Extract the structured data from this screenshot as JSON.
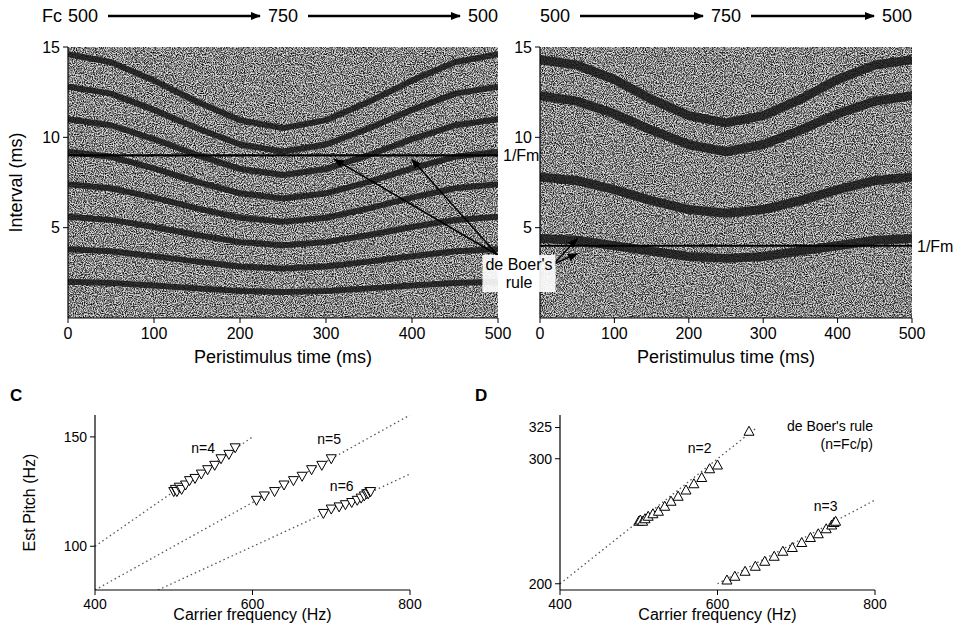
{
  "chart_data": [
    {
      "type": "raster",
      "header": [
        "Fc",
        "500",
        "750",
        "500"
      ],
      "xlabel": "Peristimulus time (ms)",
      "ylabel": "Interval (ms)",
      "xlim": [
        0,
        500
      ],
      "xticks": [
        0,
        100,
        200,
        300,
        400,
        500
      ],
      "ylim": [
        0,
        15
      ],
      "yticks": [
        5,
        10,
        15
      ],
      "x": [
        0,
        50,
        100,
        150,
        200,
        250,
        300,
        350,
        400,
        450,
        500
      ],
      "series": [
        {
          "color": "#1e1e1e",
          "values": [
            2,
            1.94,
            1.8,
            1.64,
            1.5,
            1.44,
            1.5,
            1.64,
            1.8,
            1.94,
            2
          ]
        },
        {
          "color": "#1e1e1e",
          "values": [
            3.8,
            3.69,
            3.42,
            3.12,
            2.85,
            2.74,
            2.85,
            3.12,
            3.42,
            3.69,
            3.8
          ]
        },
        {
          "color": "#1e1e1e",
          "values": [
            5.6,
            5.43,
            5.04,
            4.59,
            4.2,
            4.03,
            4.2,
            4.59,
            5.04,
            5.43,
            5.6
          ]
        },
        {
          "color": "#1e1e1e",
          "values": [
            7.4,
            7.18,
            6.66,
            6.07,
            5.55,
            5.33,
            5.55,
            6.07,
            6.66,
            7.18,
            7.4
          ]
        },
        {
          "color": "#1e1e1e",
          "values": [
            9.2,
            8.92,
            8.28,
            7.54,
            6.9,
            6.62,
            6.9,
            7.54,
            8.28,
            8.92,
            9.2
          ]
        },
        {
          "color": "#1e1e1e",
          "values": [
            11,
            10.67,
            9.9,
            9.02,
            8.25,
            7.92,
            8.25,
            9.02,
            9.9,
            10.67,
            11
          ]
        },
        {
          "color": "#1e1e1e",
          "values": [
            12.8,
            12.42,
            11.52,
            10.5,
            9.6,
            9.22,
            9.6,
            10.5,
            11.52,
            12.42,
            12.8
          ]
        },
        {
          "color": "#1e1e1e",
          "values": [
            14.6,
            14.16,
            13.14,
            11.97,
            10.95,
            10.51,
            10.95,
            11.97,
            13.14,
            14.16,
            14.6
          ]
        }
      ],
      "reference_line": {
        "label": "1/Fm",
        "value": 9
      },
      "annotation": "de Boer's rule"
    },
    {
      "type": "raster",
      "header": [
        "500",
        "750",
        "500"
      ],
      "xlabel": "Peristimulus time (ms)",
      "xlim": [
        0,
        500
      ],
      "xticks": [
        0,
        100,
        200,
        300,
        400,
        500
      ],
      "ylim": [
        0,
        15
      ],
      "yticks": [
        5,
        10,
        15
      ],
      "x": [
        0,
        50,
        100,
        150,
        200,
        250,
        300,
        350,
        400,
        450,
        500
      ],
      "series": [
        {
          "color": "#1e1e1e",
          "values": [
            14.3,
            14.0,
            13.2,
            12.1,
            11.2,
            10.8,
            11.2,
            12.1,
            13.2,
            14.0,
            14.3
          ]
        },
        {
          "color": "#1e1e1e",
          "values": [
            12.3,
            12.0,
            11.3,
            10.4,
            9.6,
            9.2,
            9.6,
            10.4,
            11.3,
            12.0,
            12.3
          ]
        },
        {
          "color": "#1e1e1e",
          "values": [
            7.8,
            7.6,
            7.1,
            6.5,
            6.0,
            5.8,
            6.0,
            6.5,
            7.1,
            7.6,
            7.8
          ]
        },
        {
          "color": "#1e1e1e",
          "values": [
            4.4,
            4.3,
            4.0,
            3.7,
            3.4,
            3.3,
            3.4,
            3.7,
            4.0,
            4.3,
            4.4
          ]
        }
      ],
      "reference_line": {
        "label": "1/Fm",
        "value": 4
      }
    },
    {
      "type": "scatter",
      "panel": "C",
      "xlabel": "Carrier frequency (Hz)",
      "ylabel": "Est Pitch (Hz)",
      "xlim": [
        400,
        800
      ],
      "xticks": [
        400,
        600,
        800
      ],
      "ylim": [
        80,
        160
      ],
      "yticks": [
        100,
        150
      ],
      "series": [
        {
          "name": "n=4",
          "type": "line",
          "line_style": "dotted",
          "color": "#555555",
          "x": [
            400,
            600
          ],
          "values": [
            100,
            150
          ]
        },
        {
          "name": "n=5",
          "type": "line",
          "line_style": "dotted",
          "color": "#555555",
          "x": [
            400,
            800
          ],
          "values": [
            80,
            160
          ]
        },
        {
          "name": "n=6",
          "type": "line",
          "line_style": "dotted",
          "color": "#555555",
          "x": [
            480,
            800
          ],
          "values": [
            80,
            133
          ]
        },
        {
          "type": "scatter",
          "marker": "triangle-down",
          "color": "#000000",
          "x": [
            500,
            502,
            504,
            507,
            510,
            515,
            520,
            527,
            535,
            543,
            552,
            560,
            570,
            578
          ],
          "values": [
            125,
            126,
            125,
            127,
            126,
            128,
            130,
            131,
            133,
            135,
            137,
            140,
            142,
            145
          ]
        },
        {
          "type": "scatter",
          "marker": "triangle-down",
          "color": "#000000",
          "x": [
            605,
            615,
            628,
            640,
            652,
            663,
            675,
            688,
            700
          ],
          "values": [
            121,
            123,
            125,
            128,
            130,
            132,
            135,
            137,
            140
          ]
        },
        {
          "type": "scatter",
          "marker": "triangle-down",
          "color": "#000000",
          "x": [
            690,
            700,
            710,
            718,
            726,
            733,
            738,
            742,
            745,
            747,
            749,
            750
          ],
          "values": [
            115,
            117,
            118,
            119,
            120,
            121,
            122,
            123,
            124,
            124,
            125,
            125
          ]
        }
      ]
    },
    {
      "type": "scatter",
      "panel": "D",
      "xlabel": "Carrier frequency (Hz)",
      "xlim": [
        400,
        800
      ],
      "xticks": [
        400,
        600,
        800
      ],
      "ylim": [
        195,
        335
      ],
      "yticks": [
        200,
        300,
        325
      ],
      "annotation": [
        "de Boer's rule",
        "(n=Fc/p)"
      ],
      "series": [
        {
          "name": "n=2",
          "type": "line",
          "line_style": "dotted",
          "color": "#555555",
          "x": [
            400,
            650
          ],
          "values": [
            200,
            325
          ]
        },
        {
          "name": "n=3",
          "type": "line",
          "line_style": "dotted",
          "color": "#555555",
          "x": [
            600,
            800
          ],
          "values": [
            200,
            267
          ]
        },
        {
          "type": "scatter",
          "marker": "triangle-up",
          "color": "#000000",
          "x": [
            500,
            502,
            505,
            508,
            512,
            518,
            525,
            533,
            541,
            550,
            560,
            570,
            580,
            590,
            600,
            640
          ],
          "values": [
            250,
            251,
            250,
            252,
            254,
            256,
            258,
            262,
            266,
            270,
            275,
            280,
            285,
            292,
            295,
            322
          ]
        },
        {
          "type": "scatter",
          "marker": "triangle-up",
          "color": "#000000",
          "x": [
            612,
            622,
            635,
            648,
            660,
            672,
            683,
            695,
            707,
            718,
            728,
            738,
            745,
            748,
            750
          ],
          "values": [
            203,
            206,
            210,
            214,
            218,
            222,
            226,
            229,
            233,
            237,
            240,
            244,
            247,
            249,
            250
          ]
        }
      ]
    }
  ]
}
